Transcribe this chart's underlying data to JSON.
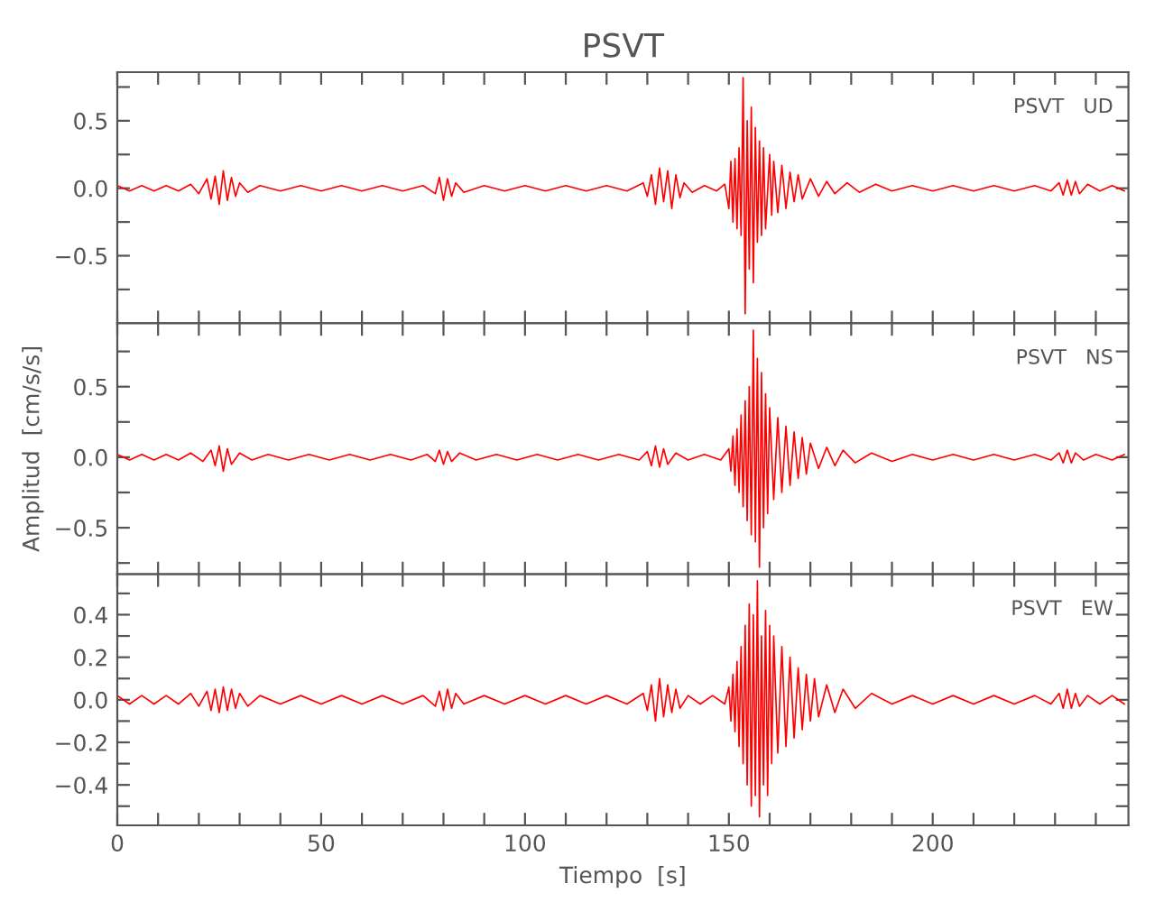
{
  "chart_data": [
    {
      "type": "line",
      "title": "PSVT",
      "annotations": [
        "PSVT   UD"
      ],
      "tick_labels": "y",
      "xlim": [
        0,
        248
      ],
      "xticks": [
        0,
        {
          "value": 10,
          "label": null
        },
        {
          "value": 20,
          "label": null
        },
        {
          "value": 30,
          "label": null
        },
        {
          "value": 40,
          "label": null
        },
        50,
        {
          "value": 60,
          "label": null
        },
        {
          "value": 70,
          "label": null
        },
        {
          "value": 80,
          "label": null
        },
        {
          "value": 90,
          "label": null
        },
        100,
        {
          "value": 110,
          "label": null
        },
        {
          "value": 120,
          "label": null
        },
        {
          "value": 130,
          "label": null
        },
        {
          "value": 140,
          "label": null
        },
        150,
        {
          "value": 160,
          "label": null
        },
        {
          "value": 170,
          "label": null
        },
        {
          "value": 180,
          "label": null
        },
        {
          "value": 190,
          "label": null
        },
        200,
        {
          "value": 210,
          "label": null
        },
        {
          "value": 220,
          "label": null
        },
        {
          "value": 230,
          "label": null
        },
        {
          "value": 240,
          "label": null
        }
      ],
      "ylim": [
        -1.0,
        0.86
      ],
      "yticks": [
        {
          "value": -0.75,
          "label": null
        },
        {
          "value": -0.5,
          "label": "−0.5"
        },
        {
          "value": -0.25,
          "label": null
        },
        {
          "value": 0.0,
          "label": "0.0"
        },
        {
          "value": 0.25,
          "label": null
        },
        0.5,
        {
          "value": 0.75,
          "label": null
        }
      ],
      "series": [
        {
          "color": "#ff0000",
          "x": [
            0,
            3,
            6,
            9,
            12,
            15,
            18,
            20,
            22,
            23,
            24,
            25,
            26,
            27,
            28,
            29,
            30,
            32,
            35,
            40,
            45,
            50,
            55,
            60,
            65,
            70,
            75,
            78,
            79,
            80,
            81,
            82,
            83,
            85,
            90,
            95,
            100,
            105,
            110,
            115,
            120,
            125,
            129,
            130,
            131,
            132,
            133,
            134,
            135,
            136,
            137,
            138,
            139,
            141,
            144,
            147,
            149,
            150,
            150.5,
            151,
            151.5,
            152,
            152.5,
            153,
            153.5,
            154,
            154.5,
            155,
            155.5,
            156,
            156.5,
            157,
            157.5,
            158,
            158.5,
            159,
            160,
            160.5,
            161,
            162,
            163,
            164,
            165,
            166,
            167,
            168,
            170,
            172,
            174,
            176,
            179,
            182,
            186,
            190,
            195,
            200,
            205,
            210,
            215,
            220,
            225,
            229,
            231,
            232,
            233,
            234,
            235,
            236,
            238,
            241,
            244,
            247
          ],
          "values": [
            0.02,
            -0.02,
            0.02,
            -0.02,
            0.02,
            -0.02,
            0.03,
            -0.04,
            0.07,
            -0.08,
            0.09,
            -0.12,
            0.13,
            -0.09,
            0.08,
            -0.06,
            0.04,
            -0.03,
            0.02,
            -0.02,
            0.02,
            -0.02,
            0.02,
            -0.02,
            0.02,
            -0.02,
            0.02,
            -0.04,
            0.08,
            -0.09,
            0.07,
            -0.06,
            0.04,
            -0.03,
            0.02,
            -0.02,
            0.02,
            -0.02,
            0.02,
            -0.02,
            0.02,
            -0.02,
            0.04,
            -0.06,
            0.1,
            -0.12,
            0.15,
            -0.1,
            0.13,
            -0.15,
            0.1,
            -0.07,
            0.04,
            -0.03,
            0.02,
            -0.02,
            0.03,
            -0.15,
            0.2,
            -0.25,
            0.22,
            -0.3,
            0.3,
            -0.35,
            0.82,
            -0.93,
            0.5,
            -0.6,
            0.6,
            -0.7,
            0.45,
            -0.4,
            0.35,
            -0.35,
            0.3,
            -0.3,
            0.25,
            -0.2,
            0.2,
            -0.18,
            0.17,
            -0.15,
            0.12,
            -0.1,
            0.1,
            -0.08,
            0.07,
            -0.06,
            0.05,
            -0.04,
            0.04,
            -0.03,
            0.03,
            -0.02,
            0.02,
            -0.02,
            0.02,
            -0.02,
            0.02,
            -0.02,
            0.02,
            -0.02,
            0.04,
            -0.05,
            0.06,
            -0.05,
            0.05,
            -0.04,
            0.03,
            -0.02,
            0.02,
            -0.02
          ]
        }
      ]
    },
    {
      "type": "line",
      "ylabel": "Amplitud  [cm/s/s]",
      "annotations": [
        "PSVT   NS"
      ],
      "tick_labels": "y",
      "xlim": [
        0,
        248
      ],
      "xticks": [
        0,
        {
          "value": 10,
          "label": null
        },
        {
          "value": 20,
          "label": null
        },
        {
          "value": 30,
          "label": null
        },
        {
          "value": 40,
          "label": null
        },
        50,
        {
          "value": 60,
          "label": null
        },
        {
          "value": 70,
          "label": null
        },
        {
          "value": 80,
          "label": null
        },
        {
          "value": 90,
          "label": null
        },
        100,
        {
          "value": 110,
          "label": null
        },
        {
          "value": 120,
          "label": null
        },
        {
          "value": 130,
          "label": null
        },
        {
          "value": 140,
          "label": null
        },
        150,
        {
          "value": 160,
          "label": null
        },
        {
          "value": 170,
          "label": null
        },
        {
          "value": 180,
          "label": null
        },
        {
          "value": 190,
          "label": null
        },
        200,
        {
          "value": 210,
          "label": null
        },
        {
          "value": 220,
          "label": null
        },
        {
          "value": 230,
          "label": null
        },
        {
          "value": 240,
          "label": null
        }
      ],
      "ylim": [
        -0.83,
        0.95
      ],
      "yticks": [
        {
          "value": -0.75,
          "label": null
        },
        {
          "value": -0.5,
          "label": "−0.5"
        },
        {
          "value": -0.25,
          "label": null
        },
        {
          "value": 0.0,
          "label": "0.0"
        },
        {
          "value": 0.25,
          "label": null
        },
        0.5,
        {
          "value": 0.75,
          "label": null
        }
      ],
      "series": [
        {
          "color": "#ff0000",
          "x": [
            0,
            3,
            6,
            9,
            12,
            15,
            18,
            21,
            23,
            24,
            25,
            26,
            27,
            28,
            30,
            33,
            37,
            42,
            47,
            52,
            57,
            62,
            67,
            72,
            76,
            78,
            79,
            80,
            81,
            82,
            84,
            88,
            93,
            98,
            103,
            108,
            113,
            118,
            123,
            128,
            130,
            131,
            132,
            133,
            134,
            135,
            137,
            140,
            144,
            148,
            150,
            150.5,
            151,
            151.5,
            152,
            152.5,
            153,
            153.5,
            154,
            154.5,
            155,
            155.5,
            156,
            156.5,
            157,
            157.5,
            158,
            158.5,
            159,
            159.5,
            160,
            161,
            162,
            163,
            164,
            165,
            166,
            167,
            168,
            169,
            170,
            172,
            174,
            176,
            178,
            181,
            185,
            190,
            195,
            200,
            205,
            210,
            215,
            220,
            225,
            229,
            231,
            232,
            233,
            234,
            235,
            237,
            240,
            244,
            247
          ],
          "values": [
            0.02,
            -0.02,
            0.02,
            -0.02,
            0.02,
            -0.02,
            0.03,
            -0.03,
            0.05,
            -0.06,
            0.08,
            -0.1,
            0.06,
            -0.05,
            0.03,
            -0.02,
            0.02,
            -0.02,
            0.02,
            -0.02,
            0.02,
            -0.02,
            0.02,
            -0.02,
            0.02,
            -0.03,
            0.05,
            -0.05,
            0.04,
            -0.03,
            0.03,
            -0.02,
            0.02,
            -0.02,
            0.02,
            -0.02,
            0.02,
            -0.02,
            0.02,
            -0.02,
            0.04,
            -0.06,
            0.08,
            -0.07,
            0.06,
            -0.05,
            0.03,
            -0.02,
            0.02,
            -0.02,
            0.06,
            -0.1,
            0.15,
            -0.2,
            0.2,
            -0.25,
            0.3,
            -0.35,
            0.4,
            -0.45,
            0.5,
            -0.55,
            0.9,
            -0.6,
            0.7,
            -0.78,
            0.6,
            -0.5,
            0.45,
            -0.4,
            0.35,
            -0.3,
            0.28,
            -0.25,
            0.22,
            -0.2,
            0.18,
            -0.15,
            0.14,
            -0.12,
            0.1,
            -0.08,
            0.07,
            -0.06,
            0.05,
            -0.04,
            0.03,
            -0.03,
            0.02,
            -0.02,
            0.02,
            -0.02,
            0.02,
            -0.02,
            0.02,
            -0.02,
            0.03,
            -0.04,
            0.05,
            -0.04,
            0.03,
            -0.02,
            0.02,
            -0.02,
            0.02
          ]
        }
      ]
    },
    {
      "type": "line",
      "xlabel": "Tiempo  [s]",
      "annotations": [
        "PSVT   EW"
      ],
      "xlim": [
        0,
        248
      ],
      "xticks": [
        0,
        {
          "value": 10,
          "label": null
        },
        {
          "value": 20,
          "label": null
        },
        {
          "value": 30,
          "label": null
        },
        {
          "value": 40,
          "label": null
        },
        50,
        {
          "value": 60,
          "label": null
        },
        {
          "value": 70,
          "label": null
        },
        {
          "value": 80,
          "label": null
        },
        {
          "value": 90,
          "label": null
        },
        100,
        {
          "value": 110,
          "label": null
        },
        {
          "value": 120,
          "label": null
        },
        {
          "value": 130,
          "label": null
        },
        {
          "value": 140,
          "label": null
        },
        150,
        {
          "value": 160,
          "label": null
        },
        {
          "value": 170,
          "label": null
        },
        {
          "value": 180,
          "label": null
        },
        {
          "value": 190,
          "label": null
        },
        200,
        {
          "value": 210,
          "label": null
        },
        {
          "value": 220,
          "label": null
        },
        {
          "value": 230,
          "label": null
        },
        {
          "value": 240,
          "label": null
        }
      ],
      "ylim": [
        -0.59,
        0.59
      ],
      "yticks": [
        {
          "value": -0.5,
          "label": null
        },
        {
          "value": -0.4,
          "label": "−0.4"
        },
        {
          "value": -0.3,
          "label": null
        },
        {
          "value": -0.2,
          "label": "−0.2"
        },
        {
          "value": -0.1,
          "label": null
        },
        {
          "value": 0.0,
          "label": "0.0"
        },
        {
          "value": 0.1,
          "label": null
        },
        0.2,
        {
          "value": 0.3,
          "label": null
        },
        0.4,
        {
          "value": 0.5,
          "label": null
        }
      ],
      "series": [
        {
          "color": "#ff0000",
          "x": [
            0,
            3,
            6,
            9,
            12,
            15,
            18,
            20,
            22,
            23,
            24,
            25,
            26,
            27,
            28,
            29,
            30,
            32,
            35,
            40,
            45,
            50,
            55,
            60,
            65,
            70,
            75,
            78,
            79,
            80,
            81,
            82,
            83,
            85,
            90,
            95,
            100,
            105,
            110,
            115,
            120,
            125,
            129,
            130,
            131,
            132,
            133,
            134,
            135,
            136,
            137,
            138,
            140,
            143,
            146,
            149,
            150,
            150.5,
            151,
            151.5,
            152,
            152.5,
            153,
            153.5,
            154,
            154.5,
            155,
            155.5,
            156,
            156.5,
            157,
            157.5,
            158,
            158.5,
            159,
            159.5,
            160,
            160.5,
            161,
            162,
            163,
            164,
            165,
            166,
            167,
            168,
            169,
            170,
            171,
            172,
            174,
            176,
            178,
            181,
            185,
            190,
            195,
            200,
            205,
            210,
            215,
            220,
            225,
            229,
            231,
            232,
            233,
            234,
            235,
            236,
            238,
            241,
            244,
            247
          ],
          "values": [
            0.02,
            -0.02,
            0.02,
            -0.02,
            0.02,
            -0.02,
            0.03,
            -0.03,
            0.04,
            -0.05,
            0.05,
            -0.06,
            0.06,
            -0.05,
            0.05,
            -0.04,
            0.03,
            -0.03,
            0.02,
            -0.02,
            0.02,
            -0.02,
            0.02,
            -0.02,
            0.02,
            -0.02,
            0.02,
            -0.03,
            0.04,
            -0.05,
            0.05,
            -0.04,
            0.03,
            -0.02,
            0.02,
            -0.02,
            0.02,
            -0.02,
            0.02,
            -0.02,
            0.02,
            -0.02,
            0.03,
            -0.05,
            0.07,
            -0.1,
            0.1,
            -0.08,
            0.07,
            -0.06,
            0.05,
            -0.04,
            0.02,
            -0.02,
            0.02,
            -0.02,
            0.06,
            -0.1,
            0.12,
            -0.15,
            0.18,
            -0.22,
            0.25,
            -0.3,
            0.35,
            -0.4,
            0.45,
            -0.5,
            0.4,
            -0.45,
            0.56,
            -0.55,
            0.3,
            -0.4,
            0.42,
            -0.45,
            0.35,
            -0.3,
            0.3,
            -0.25,
            0.25,
            -0.22,
            0.2,
            -0.18,
            0.15,
            -0.14,
            0.12,
            -0.1,
            0.1,
            -0.08,
            0.07,
            -0.06,
            0.05,
            -0.04,
            0.03,
            -0.02,
            0.02,
            -0.02,
            0.02,
            -0.02,
            0.02,
            -0.02,
            0.02,
            -0.02,
            0.03,
            -0.04,
            0.05,
            -0.04,
            0.03,
            -0.03,
            0.02,
            -0.02,
            0.02,
            -0.02
          ]
        }
      ]
    }
  ]
}
